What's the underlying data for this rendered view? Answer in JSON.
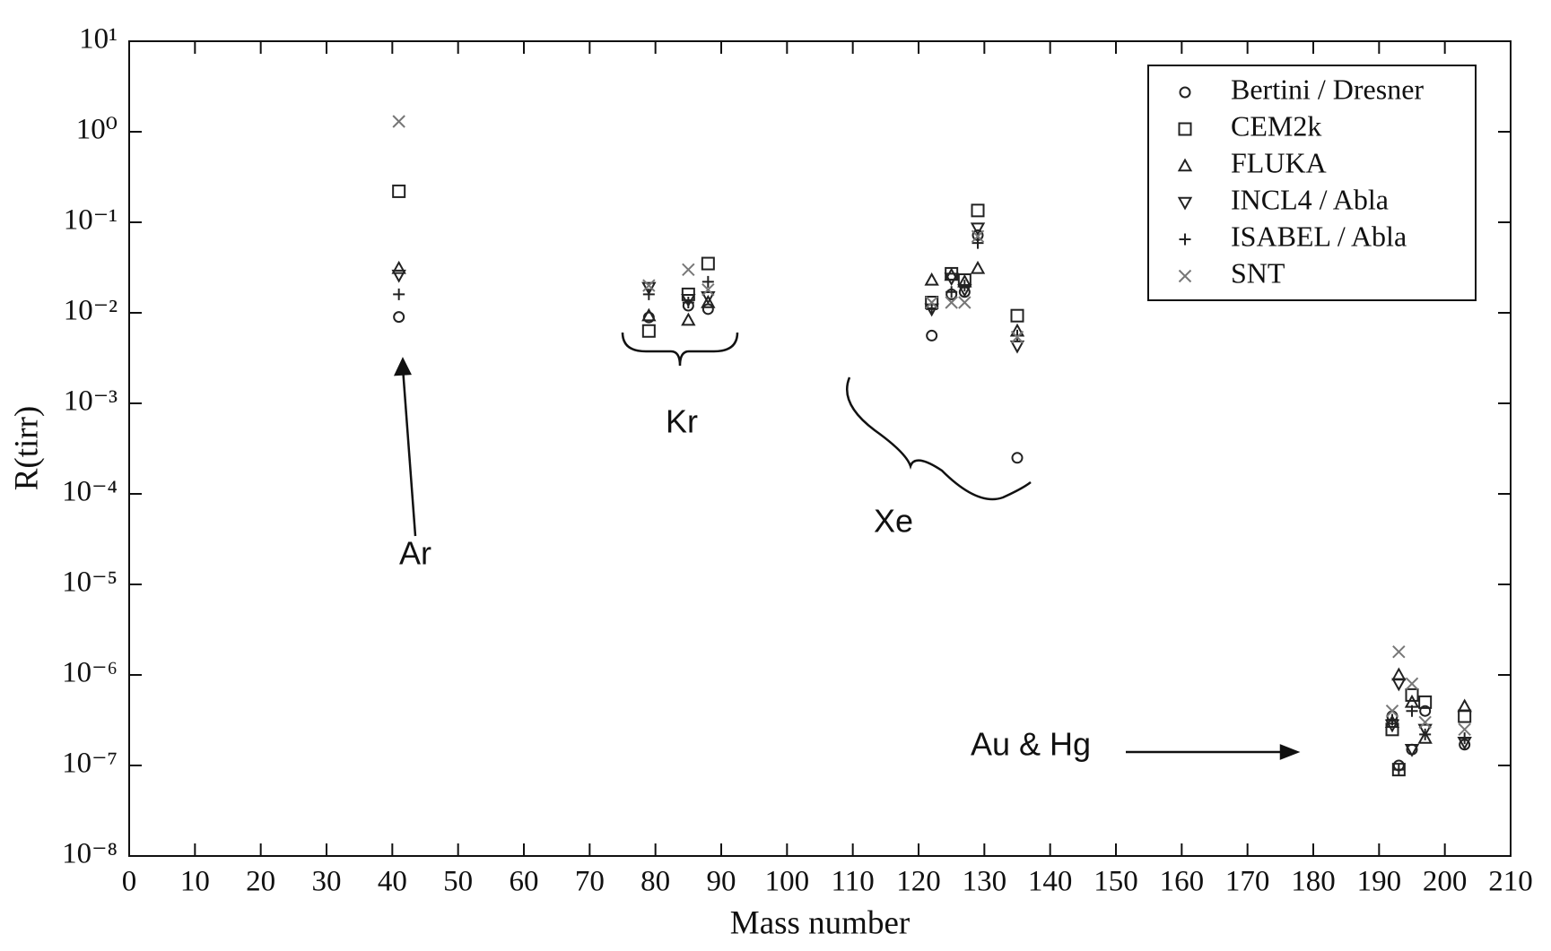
{
  "chart_data": {
    "type": "scatter",
    "x_label": "Mass number",
    "y_label": "R(tirr)",
    "xlim": [
      0,
      210
    ],
    "ylim": [
      1e-08,
      10
    ],
    "ylog": true,
    "grid": false,
    "xticks": [
      0,
      10,
      20,
      30,
      40,
      50,
      60,
      70,
      80,
      90,
      100,
      110,
      120,
      130,
      140,
      150,
      160,
      170,
      180,
      190,
      200,
      210
    ],
    "yticks": [
      {
        "value": 1e-08,
        "label": "10⁻⁸"
      },
      {
        "value": 1e-07,
        "label": "10⁻⁷"
      },
      {
        "value": 1e-06,
        "label": "10⁻⁶"
      },
      {
        "value": 1e-05,
        "label": "10⁻⁵"
      },
      {
        "value": 0.0001,
        "label": "10⁻⁴"
      },
      {
        "value": 0.001,
        "label": "10⁻³"
      },
      {
        "value": 0.01,
        "label": "10⁻²"
      },
      {
        "value": 0.1,
        "label": "10⁻¹"
      },
      {
        "value": 1,
        "label": "10⁰"
      },
      {
        "value": 10,
        "label": "10¹"
      }
    ],
    "legend": "upper right",
    "annotations": [
      "Ar",
      "Kr",
      "Xe",
      "Au & Hg"
    ],
    "x": [
      41,
      79,
      85,
      88,
      122,
      125,
      127,
      129,
      135,
      192,
      193,
      195,
      197,
      203
    ],
    "series": [
      {
        "name": "Bertini / Dresner",
        "marker": "circle",
        "color": "#222",
        "values": [
          0.009,
          0.0089,
          0.012,
          0.011,
          0.0056,
          0.016,
          0.017,
          0.072,
          0.00025,
          3.5e-07,
          1e-07,
          1.5e-07,
          4e-07,
          1.7e-07
        ]
      },
      {
        "name": "CEM2k",
        "marker": "square",
        "color": "#222",
        "values": [
          0.22,
          0.0063,
          0.016,
          0.035,
          0.013,
          0.027,
          0.023,
          0.135,
          0.0093,
          2.5e-07,
          9e-08,
          6e-07,
          5e-07,
          3.5e-07
        ]
      },
      {
        "name": "FLUKA",
        "marker": "triangle-up",
        "color": "#222",
        "values": [
          0.031,
          0.0093,
          0.0083,
          0.013,
          0.023,
          0.026,
          0.022,
          0.031,
          0.0063,
          3e-07,
          1e-06,
          5e-07,
          2e-07,
          4.5e-07
        ]
      },
      {
        "name": "INCL4 / Abla",
        "marker": "triangle-down",
        "color": "#222",
        "values": [
          0.026,
          0.019,
          0.014,
          0.015,
          0.011,
          0.024,
          0.018,
          0.086,
          0.0043,
          2.8e-07,
          8e-07,
          1.5e-07,
          2.5e-07,
          1.8e-07
        ]
      },
      {
        "name": "ISABEL / Abla",
        "marker": "plus",
        "color": "#222",
        "values": [
          0.016,
          0.016,
          0.013,
          0.022,
          0.011,
          0.017,
          0.02,
          0.059,
          0.0056,
          3.2e-07,
          9e-08,
          4e-07,
          2.2e-07,
          2e-07
        ]
      },
      {
        "name": "SNT",
        "marker": "x",
        "color": "#777",
        "values": [
          1.3,
          0.02,
          0.03,
          0.018,
          0.013,
          0.013,
          0.013,
          0.07,
          0.0054,
          4e-07,
          1.8e-06,
          8e-07,
          3e-07,
          2.5e-07
        ]
      }
    ]
  }
}
